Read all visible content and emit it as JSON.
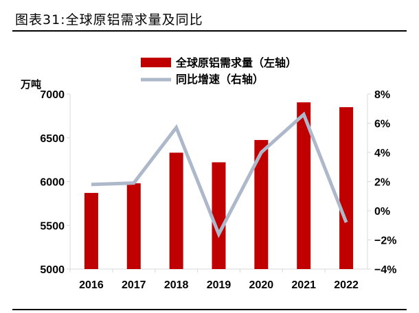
{
  "title": "图表31:全球原铝需求量及同比",
  "chart_data": {
    "type": "bar+line",
    "categories": [
      "2016",
      "2017",
      "2018",
      "2019",
      "2020",
      "2021",
      "2022"
    ],
    "series": [
      {
        "name": "全球原铝需求量（左轴）",
        "type": "bar",
        "axis": "left",
        "color": "#C00000",
        "values": [
          5870,
          5980,
          6330,
          6220,
          6475,
          6905,
          6850
        ]
      },
      {
        "name": "同比增速（右轴）",
        "type": "line",
        "axis": "right",
        "color": "#ADB9CA",
        "values": [
          1.8,
          1.9,
          5.7,
          -1.6,
          4.0,
          6.6,
          -0.8
        ]
      }
    ],
    "ylabel": "万吨",
    "ylim": [
      5000,
      7000
    ],
    "yticks": [
      "5000",
      "5500",
      "6000",
      "6500",
      "7000"
    ],
    "y2lim": [
      -4,
      8
    ],
    "y2ticks": [
      "-4%",
      "-2%",
      "0%",
      "2%",
      "4%",
      "6%",
      "8%"
    ],
    "legend": "top-center",
    "grid": false
  }
}
